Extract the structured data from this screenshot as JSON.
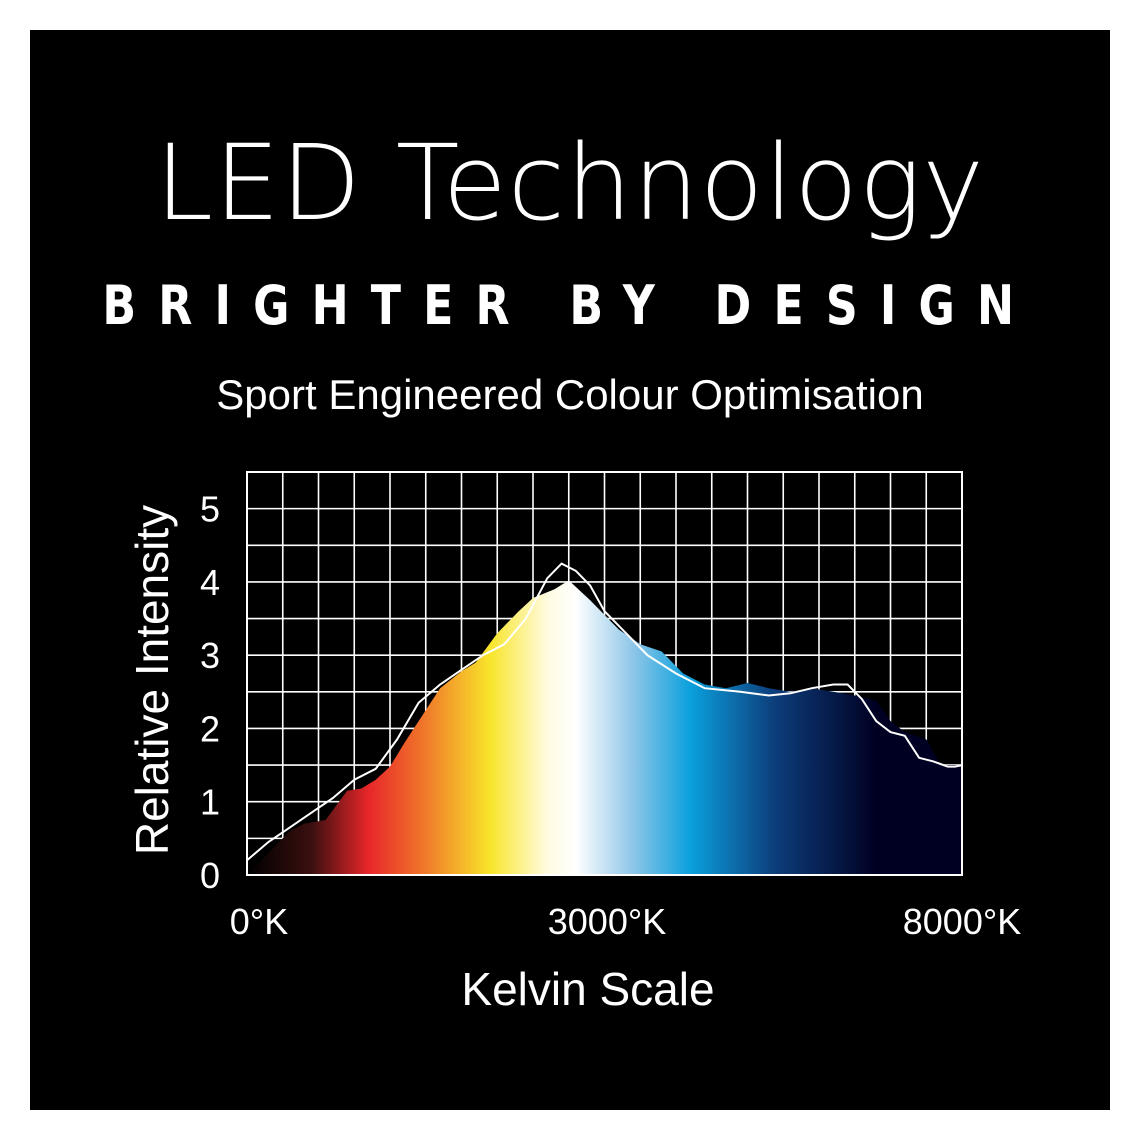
{
  "header": {
    "title": "LED Technology",
    "tagline": "BRIGHTER BY DESIGN",
    "subtitle": "Sport Engineered Colour Optimisation"
  },
  "colors": {
    "background": "#000000",
    "text": "#ffffff",
    "spectrum_stops": [
      "#000000",
      "#3a0f0f",
      "#e8262a",
      "#f07a2a",
      "#f8e52a",
      "#fffbe0",
      "#ffffff",
      "#8ec6e8",
      "#0aa0dc",
      "#0d3c7a",
      "#000022"
    ]
  },
  "chart_data": {
    "type": "area",
    "title": "",
    "xlabel": "Kelvin Scale",
    "ylabel": "Relative Intensity",
    "x_tick_labels": [
      "0°K",
      "3000°K",
      "8000°K"
    ],
    "y_tick_labels": [
      "0",
      "1",
      "2",
      "3",
      "4",
      "5"
    ],
    "xlim": [
      0,
      1
    ],
    "ylim": [
      0,
      5.5
    ],
    "grid": true,
    "series": [
      {
        "style": "filled spectrum",
        "x": [
          0.0,
          0.03,
          0.06,
          0.08,
          0.11,
          0.14,
          0.16,
          0.18,
          0.2,
          0.22,
          0.25,
          0.27,
          0.3,
          0.32,
          0.35,
          0.38,
          0.4,
          0.43,
          0.45,
          0.48,
          0.5,
          0.52,
          0.55,
          0.58,
          0.61,
          0.64,
          0.67,
          0.7,
          0.73,
          0.76,
          0.79,
          0.82,
          0.85,
          0.88,
          0.9,
          0.92,
          0.95,
          0.97,
          1.0
        ],
        "values": [
          0.0,
          0.3,
          0.6,
          0.7,
          0.75,
          1.15,
          1.18,
          1.3,
          1.48,
          1.8,
          2.25,
          2.55,
          2.78,
          2.9,
          3.3,
          3.6,
          3.78,
          3.9,
          4.02,
          3.75,
          3.55,
          3.35,
          3.15,
          3.05,
          2.75,
          2.6,
          2.55,
          2.62,
          2.55,
          2.5,
          2.55,
          2.5,
          2.45,
          2.38,
          2.1,
          1.95,
          1.85,
          1.5,
          1.5
        ]
      },
      {
        "style": "white line",
        "x": [
          0.0,
          0.03,
          0.06,
          0.09,
          0.12,
          0.15,
          0.18,
          0.21,
          0.24,
          0.27,
          0.3,
          0.33,
          0.36,
          0.39,
          0.42,
          0.44,
          0.46,
          0.48,
          0.5,
          0.53,
          0.56,
          0.6,
          0.64,
          0.69,
          0.73,
          0.76,
          0.79,
          0.82,
          0.84,
          0.86,
          0.88,
          0.9,
          0.92,
          0.94,
          0.96,
          0.98,
          0.99,
          1.0
        ],
        "values": [
          0.2,
          0.45,
          0.65,
          0.85,
          1.05,
          1.3,
          1.45,
          1.85,
          2.35,
          2.6,
          2.8,
          3.0,
          3.15,
          3.5,
          4.05,
          4.25,
          4.15,
          3.95,
          3.6,
          3.3,
          3.0,
          2.75,
          2.55,
          2.5,
          2.45,
          2.48,
          2.55,
          2.6,
          2.6,
          2.4,
          2.1,
          1.95,
          1.9,
          1.6,
          1.55,
          1.48,
          1.48,
          1.5
        ]
      }
    ]
  }
}
